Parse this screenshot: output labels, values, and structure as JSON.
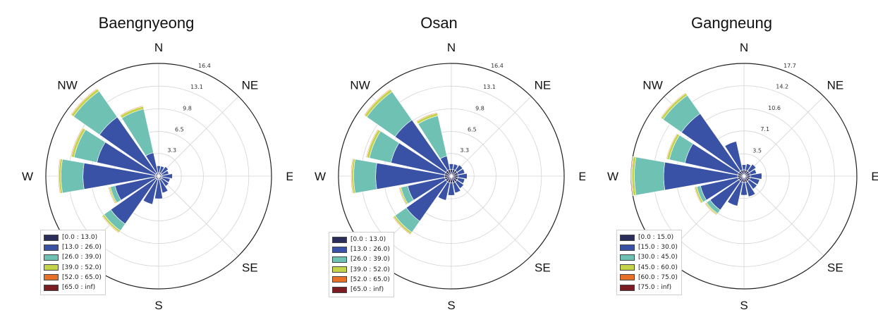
{
  "colors": [
    "#2b2d5a",
    "#3a52a5",
    "#6fc1b3",
    "#c5d34a",
    "#e8712a",
    "#7a1c22"
  ],
  "chart_data": [
    {
      "type": "windrose",
      "title": "Baengnyeong",
      "directions": [
        "N",
        "NE",
        "E",
        "SE",
        "S",
        "SW",
        "W",
        "NW"
      ],
      "rmax": 16.4,
      "rings": [
        3.3,
        6.5,
        9.8,
        13.1,
        16.4
      ],
      "ring_labels": [
        "3.3",
        "6.5",
        "9.8",
        "13.1",
        "16.4"
      ],
      "bins": [
        "[0.0 : 13.0)",
        "[13.0 : 26.0)",
        "[26.0 : 39.0)",
        "[39.0 : 52.0)",
        "[52.0 : 65.0)",
        "[65.0 : inf)"
      ],
      "sectors_deg": [
        0,
        22.5,
        45,
        67.5,
        90,
        112.5,
        135,
        157.5,
        180,
        202.5,
        225,
        247.5,
        270,
        292.5,
        315,
        337.5
      ],
      "sector_values": [
        [
          0.5,
          1.0,
          0.0,
          0.0,
          0.0,
          0.0
        ],
        [
          0.5,
          1.0,
          0.0,
          0.0,
          0.0,
          0.0
        ],
        [
          0.5,
          1.2,
          0.0,
          0.0,
          0.0,
          0.0
        ],
        [
          0.5,
          1.0,
          0.0,
          0.0,
          0.0,
          0.0
        ],
        [
          0.5,
          1.5,
          0.0,
          0.0,
          0.0,
          0.0
        ],
        [
          0.5,
          1.2,
          0.0,
          0.0,
          0.0,
          0.0
        ],
        [
          0.5,
          1.3,
          0.0,
          0.0,
          0.0,
          0.0
        ],
        [
          0.5,
          2.0,
          0.0,
          0.0,
          0.0,
          0.0
        ],
        [
          0.5,
          2.8,
          0.0,
          0.0,
          0.0,
          0.0
        ],
        [
          0.5,
          3.7,
          0.0,
          0.0,
          0.0,
          0.0
        ],
        [
          0.5,
          8.0,
          1.2,
          0.3,
          0.1,
          0.0
        ],
        [
          0.5,
          6.0,
          0.7,
          0.2,
          0.1,
          0.0
        ],
        [
          0.5,
          10.5,
          3.2,
          0.3,
          0.1,
          0.0
        ],
        [
          0.5,
          8.7,
          3.4,
          0.4,
          0.1,
          0.0
        ],
        [
          0.5,
          10.0,
          4.6,
          0.4,
          0.1,
          0.0
        ],
        [
          0.5,
          3.0,
          6.5,
          0.4,
          0.1,
          0.0
        ]
      ]
    },
    {
      "type": "windrose",
      "title": "Osan",
      "directions": [
        "N",
        "NE",
        "E",
        "SE",
        "S",
        "SW",
        "W",
        "NW"
      ],
      "rmax": 16.4,
      "rings": [
        3.3,
        6.5,
        9.8,
        13.1,
        16.4
      ],
      "ring_labels": [
        "3.3",
        "6.5",
        "9.8",
        "13.1",
        "16.4"
      ],
      "bins": [
        "[0.0 : 13.0)",
        "[13.0 : 26.0)",
        "[26.0 : 39.0)",
        "[39.0 : 52.0)",
        "[52.0 : 65.0)",
        "[65.0 : inf)"
      ],
      "sectors_deg": [
        0,
        22.5,
        45,
        67.5,
        90,
        112.5,
        135,
        157.5,
        180,
        202.5,
        225,
        247.5,
        270,
        292.5,
        315,
        337.5
      ],
      "sector_values": [
        [
          1.0,
          0.8,
          0.0,
          0.0,
          0.0,
          0.0
        ],
        [
          1.0,
          0.8,
          0.0,
          0.0,
          0.0,
          0.0
        ],
        [
          1.0,
          1.0,
          0.0,
          0.0,
          0.0,
          0.0
        ],
        [
          1.0,
          1.0,
          0.0,
          0.0,
          0.0,
          0.0
        ],
        [
          1.0,
          1.3,
          0.0,
          0.0,
          0.0,
          0.0
        ],
        [
          1.0,
          1.0,
          0.0,
          0.0,
          0.0,
          0.0
        ],
        [
          1.0,
          1.2,
          0.0,
          0.0,
          0.0,
          0.0
        ],
        [
          1.0,
          1.5,
          0.0,
          0.0,
          0.0,
          0.0
        ],
        [
          1.0,
          1.8,
          0.0,
          0.0,
          0.0,
          0.0
        ],
        [
          1.0,
          2.6,
          0.0,
          0.0,
          0.0,
          0.0
        ],
        [
          1.0,
          7.0,
          2.0,
          0.3,
          0.1,
          0.0
        ],
        [
          1.0,
          5.5,
          1.0,
          0.2,
          0.1,
          0.0
        ],
        [
          1.0,
          10.0,
          3.2,
          0.3,
          0.1,
          0.0
        ],
        [
          1.0,
          8.0,
          3.2,
          0.4,
          0.1,
          0.0
        ],
        [
          1.0,
          9.0,
          5.0,
          0.4,
          0.1,
          0.0
        ],
        [
          1.0,
          2.0,
          6.0,
          0.4,
          0.1,
          0.0
        ]
      ]
    },
    {
      "type": "windrose",
      "title": "Gangneung",
      "directions": [
        "N",
        "NE",
        "E",
        "SE",
        "S",
        "SW",
        "W",
        "NW"
      ],
      "rmax": 17.7,
      "rings": [
        3.5,
        7.1,
        10.6,
        14.2,
        17.7
      ],
      "ring_labels": [
        "3.5",
        "7.1",
        "10.6",
        "14.2",
        "17.7"
      ],
      "bins": [
        "[0.0 : 15.0)",
        "[15.0 : 30.0)",
        "[30.0 : 45.0)",
        "[45.0 : 60.0)",
        "[60.0 : 75.0)",
        "[75.0 : inf)"
      ],
      "sectors_deg": [
        0,
        22.5,
        45,
        67.5,
        90,
        112.5,
        135,
        157.5,
        180,
        202.5,
        225,
        247.5,
        270,
        292.5,
        315,
        337.5
      ],
      "sector_values": [
        [
          1.0,
          0.8,
          0.0,
          0.0,
          0.0,
          0.0
        ],
        [
          1.0,
          1.0,
          0.0,
          0.0,
          0.0,
          0.0
        ],
        [
          1.0,
          1.3,
          0.0,
          0.0,
          0.0,
          0.0
        ],
        [
          1.0,
          1.0,
          0.0,
          0.0,
          0.0,
          0.0
        ],
        [
          1.0,
          1.8,
          0.0,
          0.0,
          0.0,
          0.0
        ],
        [
          1.0,
          1.5,
          0.0,
          0.0,
          0.0,
          0.0
        ],
        [
          1.0,
          1.5,
          0.0,
          0.0,
          0.0,
          0.0
        ],
        [
          1.0,
          2.3,
          0.0,
          0.0,
          0.0,
          0.0
        ],
        [
          1.0,
          2.0,
          0.0,
          0.0,
          0.0,
          0.0
        ],
        [
          1.0,
          3.8,
          0.0,
          0.0,
          0.0,
          0.0
        ],
        [
          1.0,
          5.5,
          0.7,
          0.2,
          0.1,
          0.0
        ],
        [
          1.0,
          6.0,
          0.6,
          0.3,
          0.1,
          0.0
        ],
        [
          1.0,
          11.6,
          4.6,
          0.4,
          0.1,
          0.0
        ],
        [
          1.0,
          8.5,
          2.5,
          0.4,
          0.1,
          0.0
        ],
        [
          1.0,
          11.0,
          3.5,
          0.4,
          0.1,
          0.0
        ],
        [
          1.0,
          4.6,
          0.0,
          0.0,
          0.0,
          0.0
        ]
      ]
    }
  ]
}
